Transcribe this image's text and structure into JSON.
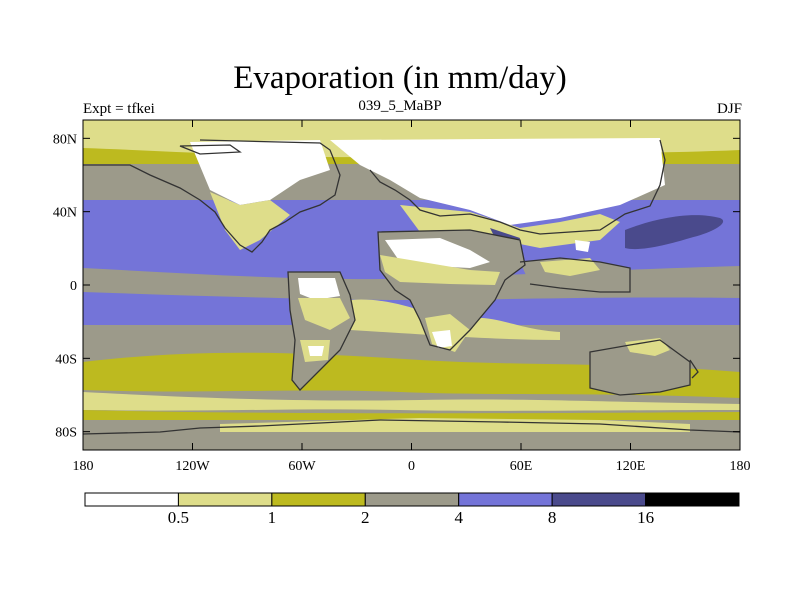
{
  "title": "Evaporation (in mm/day)",
  "left_label": "Expt = tfkei",
  "center_label": "039_5_MaBP",
  "right_label": "DJF",
  "colors": {
    "lt05": "#ffffff",
    "b05_1": "#dedd8a",
    "b1_2": "#bdba1f",
    "b2_4": "#9c9a8a",
    "b4_8": "#7474d8",
    "b8_16": "#4a4a8c",
    "gt16": "#000000"
  },
  "map": {
    "projection": "cylindrical-equidistant",
    "lon_range": [
      -180,
      180
    ],
    "lat_range": [
      -90,
      90
    ],
    "lon_ticks": [
      {
        "value": -180,
        "label": "180"
      },
      {
        "value": -120,
        "label": "120W"
      },
      {
        "value": -60,
        "label": "60W"
      },
      {
        "value": 0,
        "label": "0"
      },
      {
        "value": 60,
        "label": "60E"
      },
      {
        "value": 120,
        "label": "120E"
      },
      {
        "value": 180,
        "label": "180"
      }
    ],
    "lat_ticks": [
      {
        "value": 80,
        "label": "80N"
      },
      {
        "value": 40,
        "label": "40N"
      },
      {
        "value": 0,
        "label": "0"
      },
      {
        "value": -40,
        "label": "40S"
      },
      {
        "value": -80,
        "label": "80S"
      }
    ]
  },
  "colorbar": {
    "labels": [
      "0.5",
      "1",
      "2",
      "4",
      "8",
      "16"
    ],
    "bins": [
      "lt05",
      "b05_1",
      "b1_2",
      "b2_4",
      "b4_8",
      "b8_16",
      "gt16"
    ]
  }
}
